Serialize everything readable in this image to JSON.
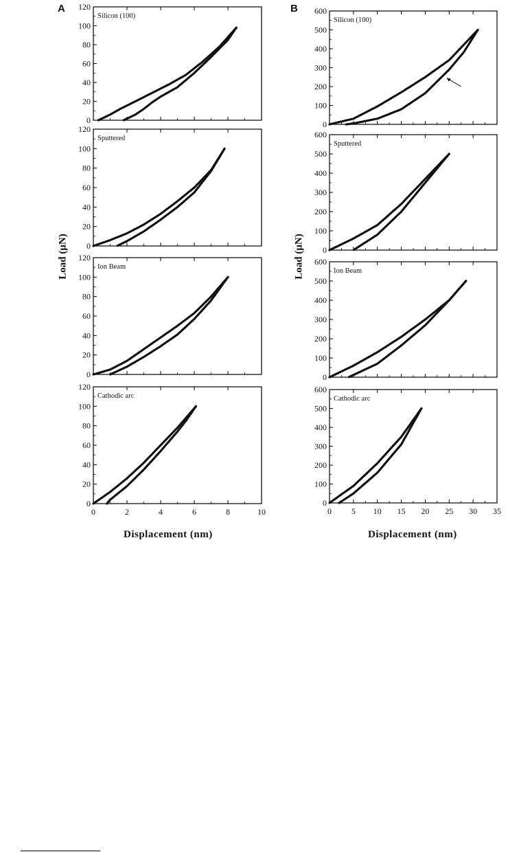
{
  "figure": {
    "panel_a": "A",
    "panel_b": "B",
    "ylabel": "Load (μN)",
    "xlabel": "Displacement (nm)"
  },
  "chart_data": [
    {
      "type": "line",
      "panel": "A",
      "label": "Silicon (100)",
      "xlim": [
        0,
        10
      ],
      "ylim": [
        0,
        120
      ],
      "xticks": [
        0,
        2,
        4,
        6,
        8,
        10
      ],
      "yticks": [
        0,
        20,
        40,
        60,
        80,
        100,
        120
      ],
      "series": [
        {
          "x": [
            0.3,
            1.0,
            1.6,
            2.5,
            3.5,
            4.5,
            5.5,
            6.5,
            7.5,
            8.5
          ],
          "y": [
            0,
            6,
            12,
            20,
            29,
            38,
            48,
            62,
            78,
            98
          ]
        },
        {
          "x": [
            8.5,
            8.0,
            7.0,
            6.0,
            5.0,
            4.0,
            3.5,
            3.0,
            2.5,
            1.8
          ],
          "y": [
            98,
            85,
            67,
            50,
            35,
            25,
            19,
            12,
            6,
            0
          ]
        }
      ]
    },
    {
      "type": "line",
      "panel": "A",
      "label": "Sputtered",
      "xlim": [
        0,
        10
      ],
      "ylim": [
        0,
        120
      ],
      "xticks": [
        0,
        2,
        4,
        6,
        8,
        10
      ],
      "yticks": [
        0,
        20,
        40,
        60,
        80,
        100,
        120
      ],
      "series": [
        {
          "x": [
            0,
            1,
            2,
            3,
            4,
            5,
            6,
            7,
            7.8
          ],
          "y": [
            0,
            6,
            13,
            22,
            33,
            46,
            60,
            78,
            100
          ]
        },
        {
          "x": [
            7.8,
            7.0,
            6.0,
            5.0,
            4.0,
            3.0,
            2.0,
            1.4
          ],
          "y": [
            100,
            77,
            55,
            40,
            27,
            15,
            5,
            0
          ]
        }
      ]
    },
    {
      "type": "line",
      "panel": "A",
      "label": "Ion Beam",
      "xlim": [
        0,
        10
      ],
      "ylim": [
        0,
        120
      ],
      "xticks": [
        0,
        2,
        4,
        6,
        8,
        10
      ],
      "yticks": [
        0,
        20,
        40,
        60,
        80,
        100,
        120
      ],
      "series": [
        {
          "x": [
            0,
            1,
            2,
            3,
            4,
            5,
            6,
            7,
            8
          ],
          "y": [
            0,
            5,
            14,
            26,
            38,
            50,
            63,
            80,
            100
          ]
        },
        {
          "x": [
            8,
            7,
            6,
            5,
            4,
            3,
            2,
            1
          ],
          "y": [
            100,
            76,
            57,
            41,
            29,
            18,
            8,
            0
          ]
        }
      ]
    },
    {
      "type": "line",
      "panel": "A",
      "label": "Cathodic arc",
      "xlim": [
        0,
        10
      ],
      "ylim": [
        0,
        120
      ],
      "xticks": [
        0,
        2,
        4,
        6,
        8,
        10
      ],
      "xticklabels": [
        "0",
        "2",
        "4",
        "6",
        "8",
        "10"
      ],
      "yticks": [
        0,
        20,
        40,
        60,
        80,
        100,
        120
      ],
      "series": [
        {
          "x": [
            0,
            1,
            2,
            3,
            4,
            5,
            6.1
          ],
          "y": [
            0,
            12,
            26,
            42,
            60,
            78,
            100
          ]
        },
        {
          "x": [
            6.1,
            5.5,
            5,
            4,
            3,
            2,
            1,
            0.8
          ],
          "y": [
            100,
            85,
            74,
            54,
            35,
            18,
            4,
            0
          ]
        }
      ]
    },
    {
      "type": "line",
      "panel": "B",
      "label": "Silicon (100)",
      "xlim": [
        0,
        35
      ],
      "ylim": [
        0,
        600
      ],
      "xticks": [
        0,
        5,
        10,
        15,
        20,
        25,
        30,
        35
      ],
      "yticks": [
        0,
        100,
        200,
        300,
        400,
        500,
        600
      ],
      "series": [
        {
          "x": [
            0,
            5,
            10,
            15,
            20,
            25,
            31
          ],
          "y": [
            0,
            30,
            95,
            170,
            250,
            340,
            500
          ]
        },
        {
          "x": [
            31,
            28,
            25,
            20,
            15,
            10,
            5,
            3.5
          ],
          "y": [
            500,
            380,
            290,
            165,
            80,
            30,
            5,
            0
          ]
        }
      ]
    },
    {
      "type": "line",
      "panel": "B",
      "label": "Sputtered",
      "xlim": [
        0,
        35
      ],
      "ylim": [
        0,
        600
      ],
      "xticks": [
        0,
        5,
        10,
        15,
        20,
        25,
        30,
        35
      ],
      "yticks": [
        0,
        100,
        200,
        300,
        400,
        500,
        600
      ],
      "series": [
        {
          "x": [
            0,
            5,
            10,
            15,
            20,
            25
          ],
          "y": [
            0,
            60,
            130,
            240,
            370,
            500
          ]
        },
        {
          "x": [
            25,
            20,
            15,
            10,
            5
          ],
          "y": [
            500,
            350,
            200,
            80,
            0
          ]
        }
      ]
    },
    {
      "type": "line",
      "panel": "B",
      "label": "Ion Beam",
      "xlim": [
        0,
        35
      ],
      "ylim": [
        0,
        600
      ],
      "xticks": [
        0,
        5,
        10,
        15,
        20,
        25,
        30,
        35
      ],
      "yticks": [
        0,
        100,
        200,
        300,
        400,
        500,
        600
      ],
      "series": [
        {
          "x": [
            0,
            5,
            10,
            15,
            20,
            25,
            28.5
          ],
          "y": [
            0,
            60,
            130,
            210,
            300,
            400,
            500
          ]
        },
        {
          "x": [
            28.5,
            25,
            20,
            15,
            10,
            4
          ],
          "y": [
            500,
            400,
            270,
            165,
            70,
            0
          ]
        }
      ]
    },
    {
      "type": "line",
      "panel": "B",
      "label": "Cathodic arc",
      "xlim": [
        0,
        35
      ],
      "ylim": [
        0,
        600
      ],
      "xticks": [
        0,
        5,
        10,
        15,
        20,
        25,
        30,
        35
      ],
      "xticklabels": [
        "0",
        "5",
        "10",
        "15",
        "20",
        "25",
        "30",
        "35"
      ],
      "yticks": [
        0,
        100,
        200,
        300,
        400,
        500,
        600
      ],
      "series": [
        {
          "x": [
            0,
            5,
            10,
            15,
            19.2
          ],
          "y": [
            0,
            90,
            210,
            350,
            500
          ]
        },
        {
          "x": [
            19.2,
            15,
            10,
            5,
            2
          ],
          "y": [
            500,
            310,
            160,
            50,
            0
          ]
        }
      ]
    }
  ]
}
